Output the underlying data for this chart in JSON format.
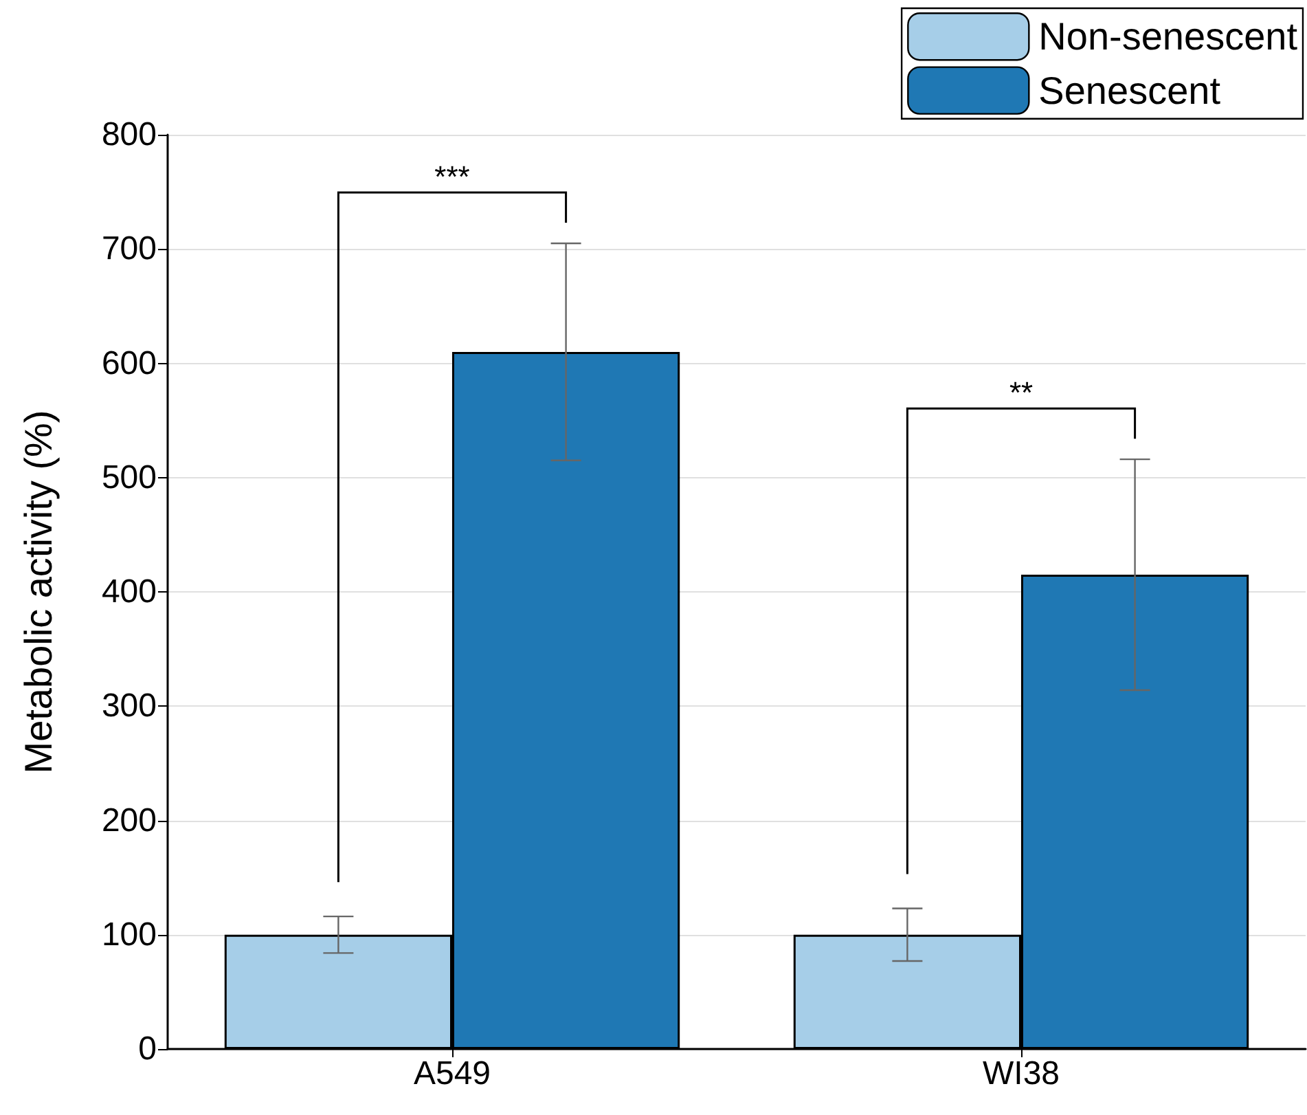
{
  "chart_data": {
    "type": "bar",
    "ylabel": "Metabolic activity (%)",
    "categories": [
      "A549",
      "WI38"
    ],
    "series": [
      {
        "name": "Non-senescent",
        "color": "#a6cee8",
        "values": [
          100,
          100
        ],
        "errors": [
          16,
          23
        ]
      },
      {
        "name": "Senescent",
        "color": "#1f78b4",
        "values": [
          610,
          415
        ],
        "errors": [
          95,
          101
        ]
      }
    ],
    "ylim": [
      0,
      800
    ],
    "yticks": [
      0,
      100,
      200,
      300,
      400,
      500,
      600,
      700,
      800
    ],
    "grid": "y",
    "legend": "top right",
    "annotations": [
      "***",
      "**"
    ]
  }
}
